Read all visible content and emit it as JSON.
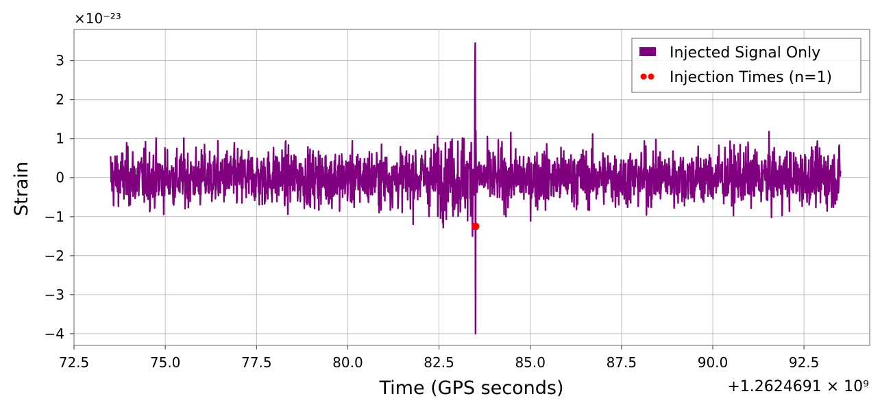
{
  "chart_data": {
    "type": "line",
    "title": "",
    "xlabel": "Time (GPS seconds)",
    "ylabel": "Strain",
    "x_offset_label": "+1.2624691 × 10⁹",
    "y_scale_label": "×10⁻²³",
    "xlim": [
      72.5,
      94.3
    ],
    "ylim": [
      -4.3,
      3.8
    ],
    "x_ticks": [
      72.5,
      75.0,
      77.5,
      80.0,
      82.5,
      85.0,
      87.5,
      90.0,
      92.5
    ],
    "x_tick_labels": [
      "72.5",
      "75.0",
      "77.5",
      "80.0",
      "82.5",
      "85.0",
      "87.5",
      "90.0",
      "92.5"
    ],
    "y_ticks": [
      3,
      2,
      1,
      0,
      -1,
      -2,
      -3,
      -4
    ],
    "y_tick_labels": [
      "3",
      "2",
      "1",
      "0",
      "−1",
      "−2",
      "−3",
      "−4"
    ],
    "grid": true,
    "legend_position": "top-right",
    "series": [
      {
        "name": "Injected Signal Only",
        "kind": "line",
        "color": "#800080",
        "x_start": 73.5,
        "x_end": 93.5,
        "typical_amplitude": 1.5,
        "peak_max": 3.45,
        "peak_min": -4.0,
        "peak_time": 83.5
      },
      {
        "name": "Injection Times (n=1)",
        "kind": "scatter",
        "color": "#ff0000",
        "points": [
          {
            "x": 83.5,
            "y": -1.25
          }
        ]
      }
    ]
  }
}
